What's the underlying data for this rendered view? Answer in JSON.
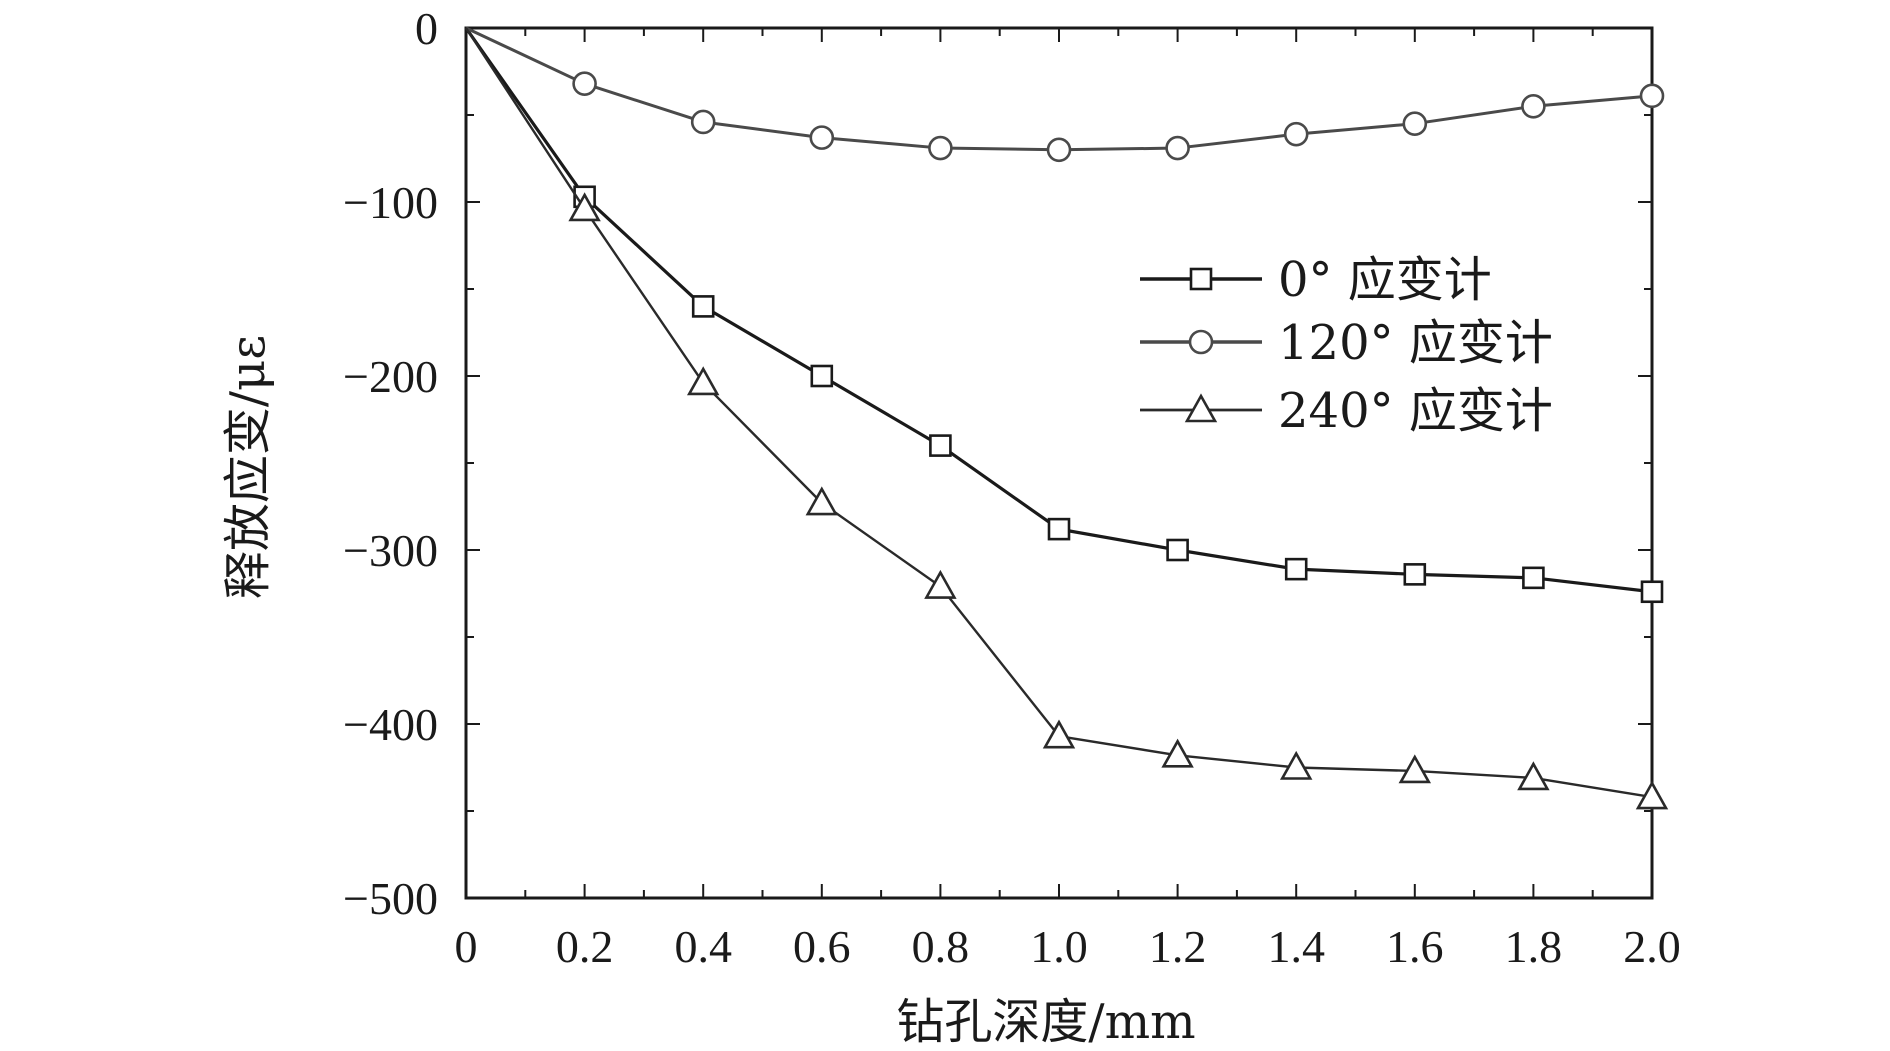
{
  "chart_data": {
    "type": "line",
    "xlabel": "钻孔深度/mm",
    "ylabel": "释放应变/με",
    "xlim": [
      0,
      2.0
    ],
    "ylim": [
      -500,
      0
    ],
    "xticks": [
      {
        "value": 0,
        "label": "0"
      },
      {
        "value": 0.2,
        "label": "0.2"
      },
      {
        "value": 0.4,
        "label": "0.4"
      },
      {
        "value": 0.6,
        "label": "0.6"
      },
      {
        "value": 0.8,
        "label": "0.8"
      },
      {
        "value": 1.0,
        "label": "1.0"
      },
      {
        "value": 1.2,
        "label": "1.2"
      },
      {
        "value": 1.4,
        "label": "1.4"
      },
      {
        "value": 1.6,
        "label": "1.6"
      },
      {
        "value": 1.8,
        "label": "1.8"
      },
      {
        "value": 2.0,
        "label": "2.0"
      }
    ],
    "yticks": [
      {
        "value": 0,
        "label": "0"
      },
      {
        "value": -100,
        "label": "−100"
      },
      {
        "value": -200,
        "label": "−200"
      },
      {
        "value": -300,
        "label": "−300"
      },
      {
        "value": -400,
        "label": "−400"
      },
      {
        "value": -500,
        "label": "−500"
      }
    ],
    "grid": false,
    "legend_position": "right",
    "x": [
      0,
      0.2,
      0.4,
      0.6,
      0.8,
      1.0,
      1.2,
      1.4,
      1.6,
      1.8,
      2.0
    ],
    "series": [
      {
        "name": "0° 应变计",
        "marker": "square",
        "color": "#1a1a1a",
        "values": [
          0,
          -97,
          -160,
          -200,
          -240,
          -288,
          -300,
          -311,
          -314,
          -316,
          -324
        ]
      },
      {
        "name": "120° 应变计",
        "marker": "circle",
        "color": "#4a4a4a",
        "values": [
          0,
          -32,
          -54,
          -63,
          -69,
          -70,
          -69,
          -61,
          -55,
          -45,
          -39
        ]
      },
      {
        "name": "240° 应变计",
        "marker": "triangle",
        "color": "#2a2a2a",
        "values": [
          0,
          -104,
          -204,
          -273,
          -321,
          -407,
          -418,
          -425,
          -427,
          -431,
          -442
        ]
      }
    ]
  }
}
